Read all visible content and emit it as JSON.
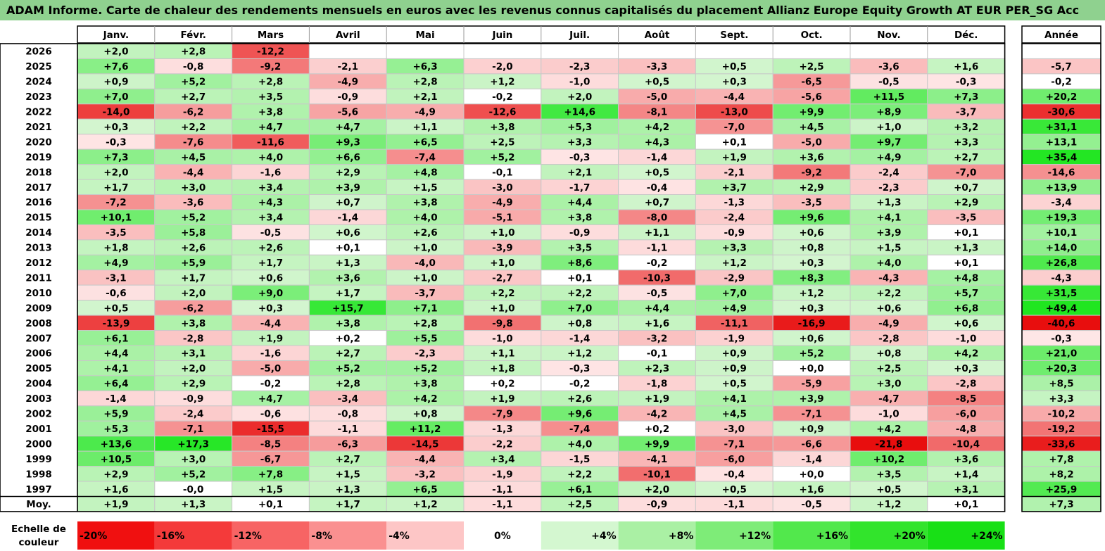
{
  "title": "ADAM Informe. Carte de chaleur des rendements mensuels en euros avec les revenus connus capitalisés du placement Allianz Europe Equity Growth AT EUR PER_SG Acc",
  "chart_data": {
    "type": "heatmap",
    "columns": [
      "Janv.",
      "Févr.",
      "Mars",
      "Avril",
      "Mai",
      "Juin",
      "Juil.",
      "Août",
      "Sept.",
      "Oct.",
      "Nov.",
      "Déc."
    ],
    "year_header": "Année",
    "avg_label": "Moy.",
    "rows": [
      {
        "year": "2026",
        "months": [
          "+2,0",
          "+2,8",
          "-12,2",
          "",
          "",
          "",
          "",
          "",
          "",
          "",
          "",
          ""
        ],
        "total": ""
      },
      {
        "year": "2025",
        "months": [
          "+7,6",
          "-0,8",
          "-9,2",
          "-2,1",
          "+6,3",
          "-2,0",
          "-2,3",
          "-3,3",
          "+0,5",
          "+2,5",
          "-3,6",
          "+1,6"
        ],
        "total": "-5,7"
      },
      {
        "year": "2024",
        "months": [
          "+0,9",
          "+5,2",
          "+2,8",
          "-4,9",
          "+2,8",
          "+1,2",
          "-1,0",
          "+0,5",
          "+0,3",
          "-6,5",
          "-0,5",
          "-0,3"
        ],
        "total": "-0,2"
      },
      {
        "year": "2023",
        "months": [
          "+7,0",
          "+2,7",
          "+3,5",
          "-0,9",
          "+2,1",
          "-0,2",
          "+2,0",
          "-5,0",
          "-4,4",
          "-5,6",
          "+11,5",
          "+7,3"
        ],
        "total": "+20,2"
      },
      {
        "year": "2022",
        "months": [
          "-14,0",
          "-6,2",
          "+3,8",
          "-5,6",
          "-4,9",
          "-12,6",
          "+14,6",
          "-8,1",
          "-13,0",
          "+9,9",
          "+8,9",
          "-3,7"
        ],
        "total": "-30,6"
      },
      {
        "year": "2021",
        "months": [
          "+0,3",
          "+2,2",
          "+4,7",
          "+4,7",
          "+1,1",
          "+3,8",
          "+5,3",
          "+4,2",
          "-7,0",
          "+4,5",
          "+1,0",
          "+3,2"
        ],
        "total": "+31,1"
      },
      {
        "year": "2020",
        "months": [
          "-0,3",
          "-7,6",
          "-11,6",
          "+9,3",
          "+6,5",
          "+2,5",
          "+3,3",
          "+4,3",
          "+0,1",
          "-5,0",
          "+9,7",
          "+3,3"
        ],
        "total": "+13,1"
      },
      {
        "year": "2019",
        "months": [
          "+7,3",
          "+4,5",
          "+4,0",
          "+6,6",
          "-7,4",
          "+5,2",
          "-0,3",
          "-1,4",
          "+1,9",
          "+3,6",
          "+4,9",
          "+2,7"
        ],
        "total": "+35,4"
      },
      {
        "year": "2018",
        "months": [
          "+2,0",
          "-4,4",
          "-1,6",
          "+2,9",
          "+4,8",
          "-0,1",
          "+2,1",
          "+0,5",
          "-2,1",
          "-9,2",
          "-2,4",
          "-7,0"
        ],
        "total": "-14,6"
      },
      {
        "year": "2017",
        "months": [
          "+1,7",
          "+3,0",
          "+3,4",
          "+3,9",
          "+1,5",
          "-3,0",
          "-1,7",
          "-0,4",
          "+3,7",
          "+2,9",
          "-2,3",
          "+0,7"
        ],
        "total": "+13,9"
      },
      {
        "year": "2016",
        "months": [
          "-7,2",
          "-3,6",
          "+4,3",
          "+0,7",
          "+3,8",
          "-4,9",
          "+4,4",
          "+0,7",
          "-1,3",
          "-3,5",
          "+1,3",
          "+2,9"
        ],
        "total": "-3,4"
      },
      {
        "year": "2015",
        "months": [
          "+10,1",
          "+5,2",
          "+3,4",
          "-1,4",
          "+4,0",
          "-5,1",
          "+3,8",
          "-8,0",
          "-2,4",
          "+9,6",
          "+4,1",
          "-3,5"
        ],
        "total": "+19,3"
      },
      {
        "year": "2014",
        "months": [
          "-3,5",
          "+5,8",
          "-0,5",
          "+0,6",
          "+2,6",
          "+1,0",
          "-0,9",
          "+1,1",
          "-0,9",
          "+0,6",
          "+3,9",
          "+0,1"
        ],
        "total": "+10,1"
      },
      {
        "year": "2013",
        "months": [
          "+1,8",
          "+2,6",
          "+2,6",
          "+0,1",
          "+1,0",
          "-3,9",
          "+3,5",
          "-1,1",
          "+3,3",
          "+0,8",
          "+1,5",
          "+1,3"
        ],
        "total": "+14,0"
      },
      {
        "year": "2012",
        "months": [
          "+4,9",
          "+5,9",
          "+1,7",
          "+1,3",
          "-4,0",
          "+1,0",
          "+8,6",
          "-0,2",
          "+1,2",
          "+0,3",
          "+4,0",
          "+0,1"
        ],
        "total": "+26,8"
      },
      {
        "year": "2011",
        "months": [
          "-3,1",
          "+1,7",
          "+0,6",
          "+3,6",
          "+1,0",
          "-2,7",
          "+0,1",
          "-10,3",
          "-2,9",
          "+8,3",
          "-4,3",
          "+4,8"
        ],
        "total": "-4,3"
      },
      {
        "year": "2010",
        "months": [
          "-0,6",
          "+2,0",
          "+9,0",
          "+1,7",
          "-3,7",
          "+2,2",
          "+2,2",
          "-0,5",
          "+7,0",
          "+1,2",
          "+2,2",
          "+5,7"
        ],
        "total": "+31,5"
      },
      {
        "year": "2009",
        "months": [
          "+0,5",
          "-6,2",
          "+0,3",
          "+15,7",
          "+7,1",
          "+1,0",
          "+7,0",
          "+4,4",
          "+4,9",
          "+0,3",
          "+0,6",
          "+6,8"
        ],
        "total": "+49,4"
      },
      {
        "year": "2008",
        "months": [
          "-13,9",
          "+3,8",
          "-4,4",
          "+3,8",
          "+2,8",
          "-9,8",
          "+0,8",
          "+1,6",
          "-11,1",
          "-16,9",
          "-4,9",
          "+0,6"
        ],
        "total": "-40,6"
      },
      {
        "year": "2007",
        "months": [
          "+6,1",
          "-2,8",
          "+1,9",
          "+0,2",
          "+5,5",
          "-1,0",
          "-1,4",
          "-3,2",
          "-1,9",
          "+0,6",
          "-2,8",
          "-1,0"
        ],
        "total": "-0,3"
      },
      {
        "year": "2006",
        "months": [
          "+4,4",
          "+3,1",
          "-1,6",
          "+2,7",
          "-2,3",
          "+1,1",
          "+1,2",
          "-0,1",
          "+0,9",
          "+5,2",
          "+0,8",
          "+4,2"
        ],
        "total": "+21,0"
      },
      {
        "year": "2005",
        "months": [
          "+4,1",
          "+2,0",
          "-5,0",
          "+5,2",
          "+5,2",
          "+1,8",
          "-0,3",
          "+2,3",
          "+0,9",
          "+0,0",
          "+2,5",
          "+0,3"
        ],
        "total": "+20,3"
      },
      {
        "year": "2004",
        "months": [
          "+6,4",
          "+2,9",
          "-0,2",
          "+2,8",
          "+3,8",
          "+0,2",
          "-0,2",
          "-1,8",
          "+0,5",
          "-5,9",
          "+3,0",
          "-2,8"
        ],
        "total": "+8,5"
      },
      {
        "year": "2003",
        "months": [
          "-1,4",
          "-0,9",
          "+4,7",
          "-3,4",
          "+4,2",
          "+1,9",
          "+2,6",
          "+1,9",
          "+4,1",
          "+3,9",
          "-4,7",
          "-8,5"
        ],
        "total": "+3,3"
      },
      {
        "year": "2002",
        "months": [
          "+5,9",
          "-2,4",
          "-0,6",
          "-0,8",
          "+0,8",
          "-7,9",
          "+9,6",
          "-4,2",
          "+4,5",
          "-7,1",
          "-1,0",
          "-6,0"
        ],
        "total": "-10,2"
      },
      {
        "year": "2001",
        "months": [
          "+5,3",
          "-7,1",
          "-15,5",
          "-1,1",
          "+11,2",
          "-1,3",
          "-7,4",
          "+0,2",
          "-3,0",
          "+0,9",
          "+4,2",
          "-4,8"
        ],
        "total": "-19,2"
      },
      {
        "year": "2000",
        "months": [
          "+13,6",
          "+17,3",
          "-8,5",
          "-6,3",
          "-14,5",
          "-2,2",
          "+4,0",
          "+9,9",
          "-7,1",
          "-6,6",
          "-21,8",
          "-10,4"
        ],
        "total": "-33,6"
      },
      {
        "year": "1999",
        "months": [
          "+10,5",
          "+3,0",
          "-6,7",
          "+2,7",
          "-4,4",
          "+3,4",
          "-1,5",
          "-4,1",
          "-6,0",
          "-1,4",
          "+10,2",
          "+3,6"
        ],
        "total": "+7,8"
      },
      {
        "year": "1998",
        "months": [
          "+2,9",
          "+5,2",
          "+7,8",
          "+1,5",
          "-3,2",
          "-1,9",
          "+2,2",
          "-10,1",
          "-0,4",
          "+0,0",
          "+3,5",
          "+1,4"
        ],
        "total": "+8,2"
      },
      {
        "year": "1997",
        "months": [
          "+1,6",
          "-0,0",
          "+1,5",
          "+1,3",
          "+6,5",
          "-1,1",
          "+6,1",
          "+2,0",
          "+0,5",
          "+1,6",
          "+0,5",
          "+3,1"
        ],
        "total": "+25,9"
      }
    ],
    "average": {
      "months": [
        "+1,9",
        "+1,3",
        "+0,1",
        "+1,7",
        "+1,2",
        "-1,1",
        "+2,5",
        "-0,9",
        "-1,1",
        "-0,5",
        "+1,2",
        "+0,1"
      ],
      "total": "+7,3"
    },
    "scale": {
      "label_line1": "Echelle de",
      "label_line2": "couleur",
      "stops": [
        "-20%",
        "-16%",
        "-12%",
        "-8%",
        "-4%",
        "0%",
        "+4%",
        "+8%",
        "+12%",
        "+16%",
        "+20%",
        "+24%"
      ]
    }
  }
}
